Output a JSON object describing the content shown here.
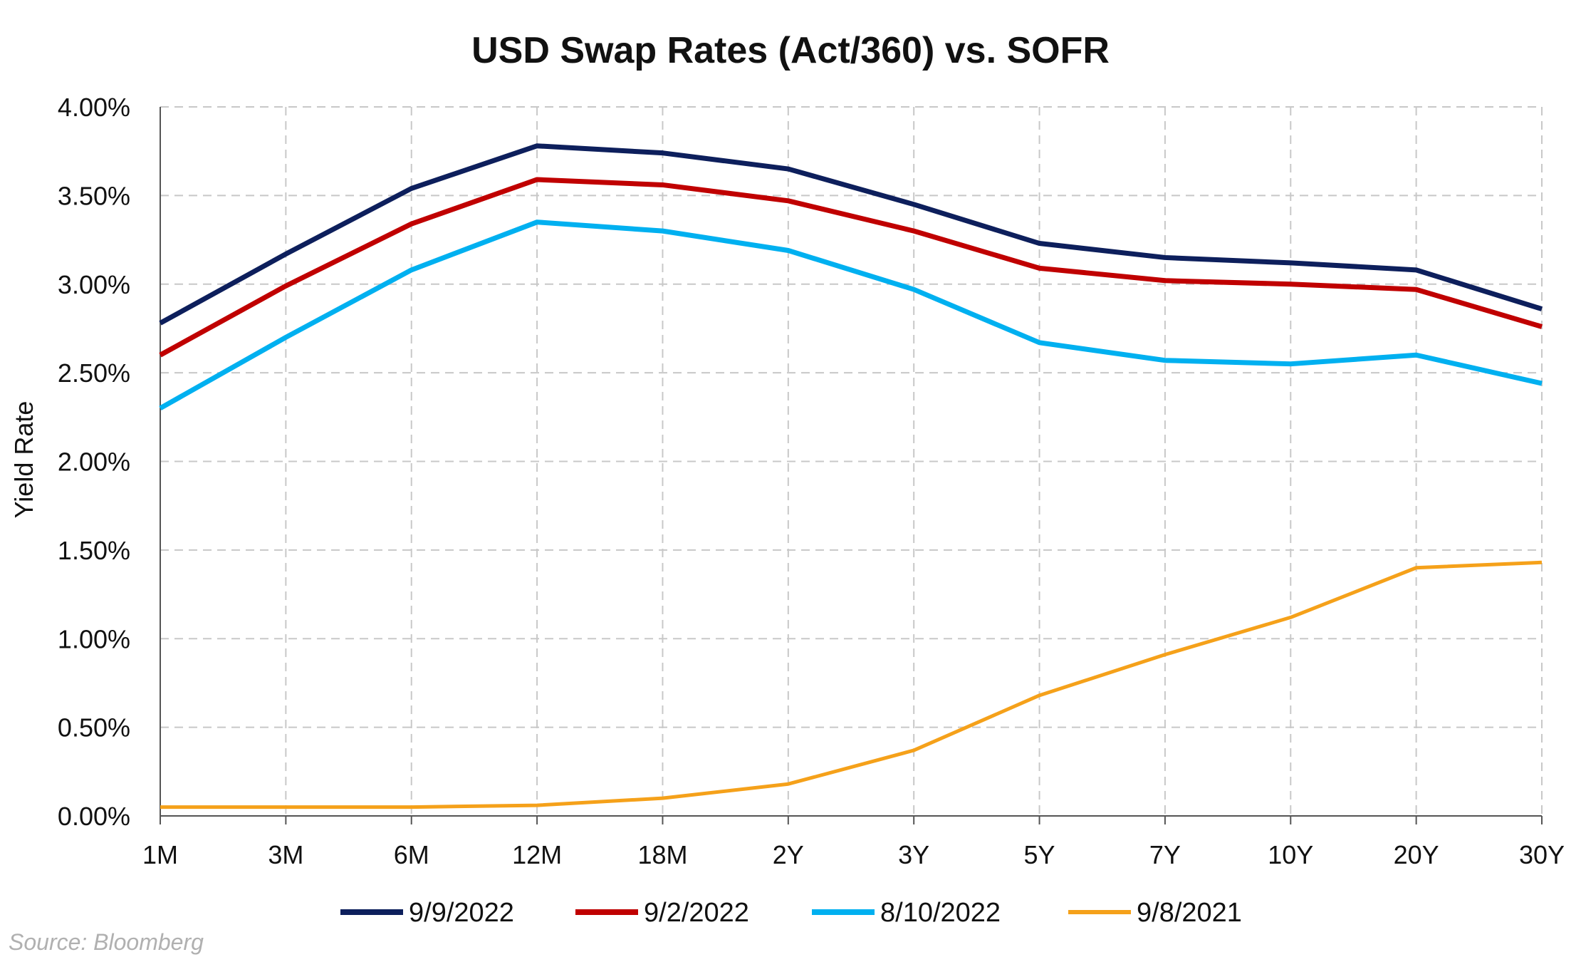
{
  "chart_data": {
    "type": "line",
    "title": "USD Swap Rates (Act/360) vs. SOFR",
    "ylabel": "Yield Rate",
    "xlabel": "",
    "categories": [
      "1M",
      "3M",
      "6M",
      "12M",
      "18M",
      "2Y",
      "3Y",
      "5Y",
      "7Y",
      "10Y",
      "20Y",
      "30Y"
    ],
    "y_ticks": [
      "0.00%",
      "0.50%",
      "1.00%",
      "1.50%",
      "2.00%",
      "2.50%",
      "3.00%",
      "3.50%",
      "4.00%"
    ],
    "ylim": [
      0,
      4
    ],
    "grid": true,
    "legend_position": "bottom",
    "series": [
      {
        "name": "9/9/2022",
        "color": "#0d1f5c",
        "values": [
          2.78,
          3.17,
          3.54,
          3.78,
          3.74,
          3.65,
          3.45,
          3.23,
          3.15,
          3.12,
          3.08,
          2.86
        ]
      },
      {
        "name": "9/2/2022",
        "color": "#c00000",
        "values": [
          2.6,
          2.99,
          3.34,
          3.59,
          3.56,
          3.47,
          3.3,
          3.09,
          3.02,
          3.0,
          2.97,
          2.76
        ]
      },
      {
        "name": "8/10/2022",
        "color": "#00b0f0",
        "values": [
          2.3,
          2.7,
          3.08,
          3.35,
          3.3,
          3.19,
          2.97,
          2.67,
          2.57,
          2.55,
          2.6,
          2.44
        ]
      },
      {
        "name": "9/8/2021",
        "color": "#f5a11a",
        "values": [
          0.05,
          0.05,
          0.05,
          0.06,
          0.1,
          0.18,
          0.37,
          0.68,
          0.91,
          1.12,
          1.4,
          1.43
        ]
      }
    ],
    "source": "Source: Bloomberg"
  }
}
